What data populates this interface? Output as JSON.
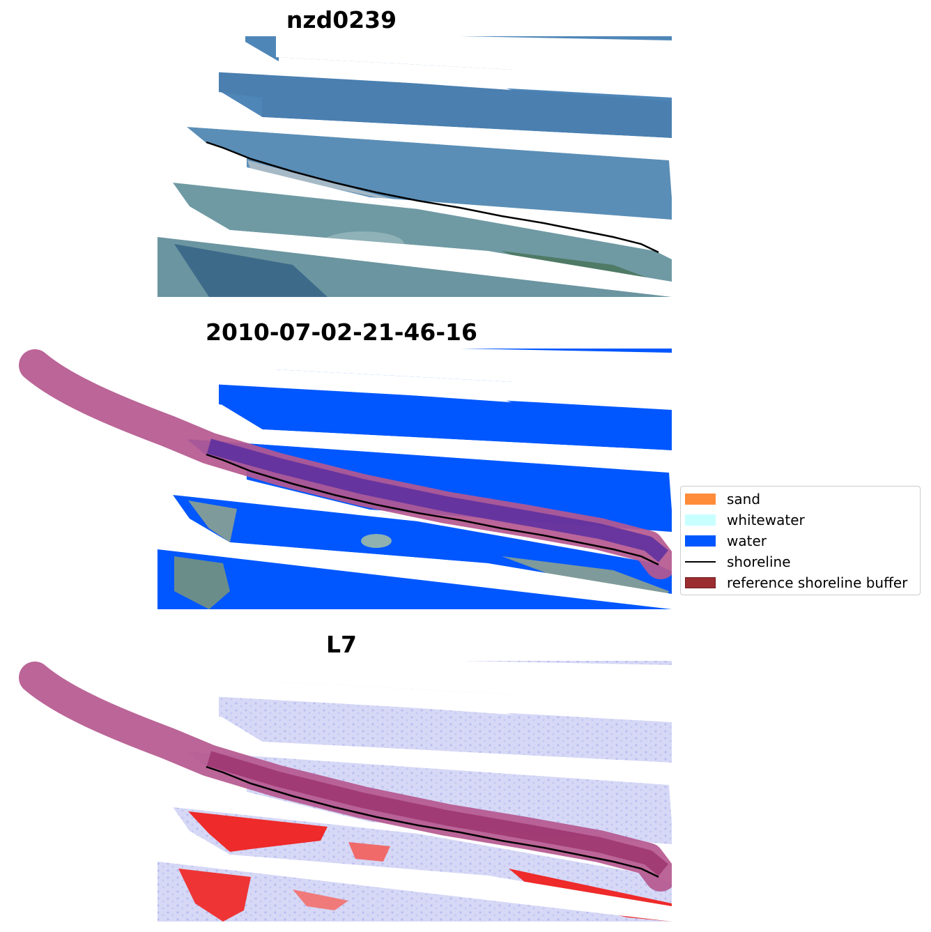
{
  "panels": {
    "rgb_title": "nzd0239",
    "classified_title": "2010-07-02-21-46-16",
    "index_title": "L7"
  },
  "legend": {
    "items": [
      {
        "label": "sand",
        "color": "#ff8c3a",
        "type": "patch"
      },
      {
        "label": "whitewater",
        "color": "#c8ffff",
        "type": "patch"
      },
      {
        "label": "water",
        "color": "#0057ff",
        "type": "patch"
      },
      {
        "label": "shoreline",
        "color": "#000000",
        "type": "line"
      },
      {
        "label": "reference shoreline buffer",
        "color": "#9b2d30",
        "type": "patch"
      }
    ]
  },
  "colors": {
    "ocean_rgb": "#4f86b8",
    "land_rgb": "#6f9aa3",
    "water_class": "#0057ff",
    "land_class": "#7f9a9a",
    "buffer": "#b5588f",
    "buffer_over_water": "#5a2ea0",
    "index_water": "#d6d8f6",
    "index_land": "#ee2a2a"
  }
}
